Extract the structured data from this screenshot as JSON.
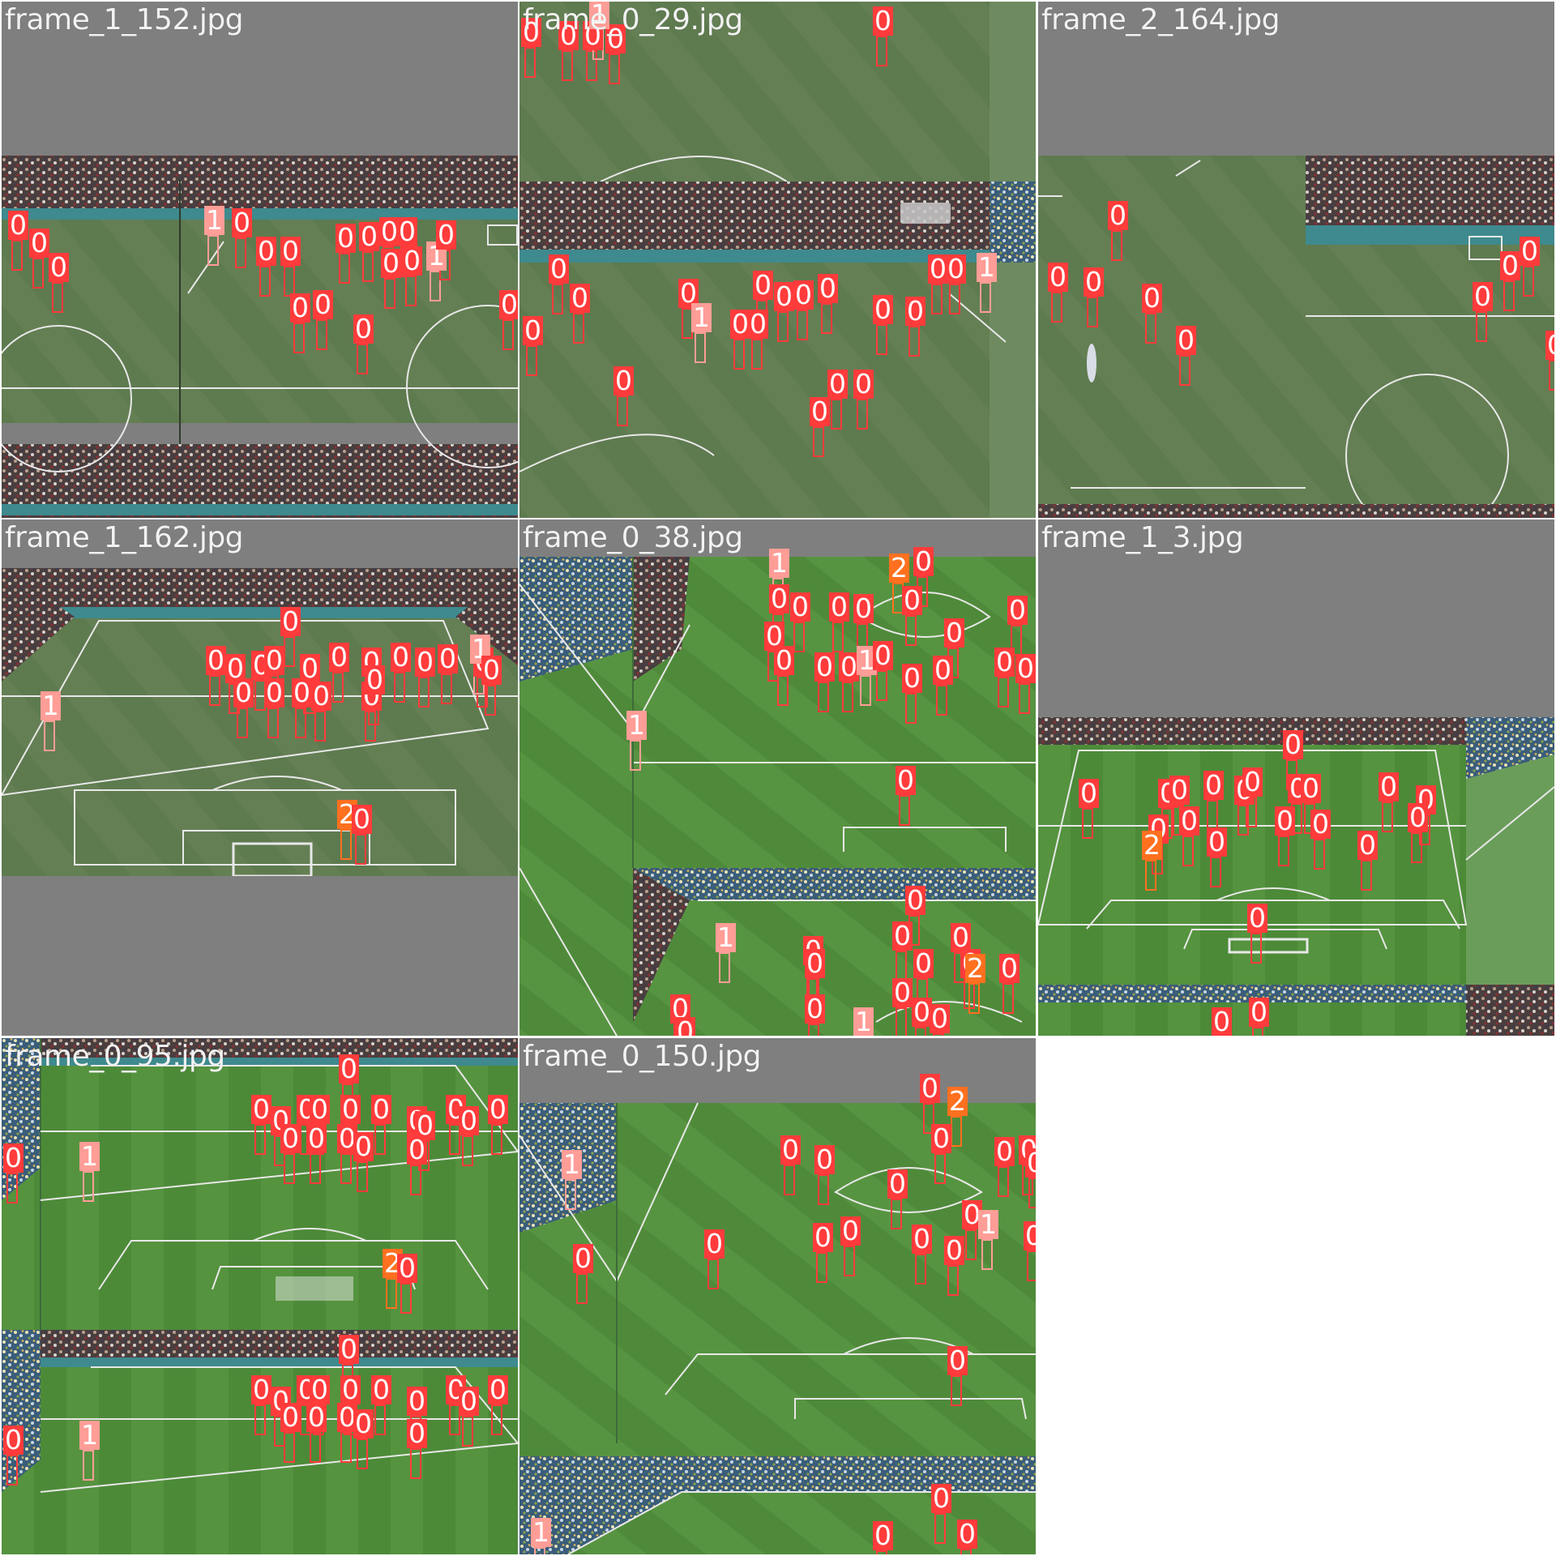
{
  "colors": {
    "0": "#ff3b3b",
    "1": "#ff9d97",
    "2": "#ff701f"
  },
  "tiles": [
    {
      "filename": "frame_1_152.jpg",
      "scene": "crowd-top",
      "dets": [
        [
          "0",
          12,
          268
        ],
        [
          "0",
          38,
          290
        ],
        [
          "0",
          62,
          320
        ],
        [
          "1",
          254,
          262
        ],
        [
          "0",
          288,
          265
        ],
        [
          "0",
          318,
          300
        ],
        [
          "0",
          348,
          300
        ],
        [
          "0",
          416,
          284
        ],
        [
          "0",
          445,
          282
        ],
        [
          "0",
          470,
          276
        ],
        [
          "0",
          492,
          276
        ],
        [
          "0",
          472,
          315
        ],
        [
          "0",
          498,
          312
        ],
        [
          "1",
          528,
          306
        ],
        [
          "0",
          540,
          280
        ],
        [
          "0",
          360,
          370
        ],
        [
          "0",
          388,
          366
        ],
        [
          "0",
          438,
          396
        ],
        [
          "0",
          618,
          366
        ]
      ]
    },
    {
      "filename": "frame_0_29.jpg",
      "scene": "crowd-mid",
      "dets": [
        [
          "0",
          6,
          30
        ],
        [
          "0",
          52,
          34
        ],
        [
          "0",
          82,
          34
        ],
        [
          "0",
          110,
          38
        ],
        [
          "1",
          90,
          8
        ],
        [
          "0",
          440,
          16
        ],
        [
          "0",
          40,
          322
        ],
        [
          "0",
          66,
          358
        ],
        [
          "0",
          8,
          398
        ],
        [
          "0",
          200,
          352
        ],
        [
          "1",
          216,
          382
        ],
        [
          "0",
          264,
          390
        ],
        [
          "0",
          286,
          390
        ],
        [
          "0",
          292,
          342
        ],
        [
          "0",
          318,
          356
        ],
        [
          "0",
          342,
          354
        ],
        [
          "0",
          372,
          346
        ],
        [
          "0",
          440,
          372
        ],
        [
          "0",
          480,
          374
        ],
        [
          "0",
          508,
          322
        ],
        [
          "0",
          530,
          322
        ],
        [
          "1",
          568,
          320
        ],
        [
          "0",
          120,
          460
        ],
        [
          "0",
          362,
          498
        ],
        [
          "0",
          384,
          464
        ],
        [
          "0",
          416,
          464
        ]
      ]
    },
    {
      "filename": "frame_2_164.jpg",
      "scene": "pitch-split",
      "dets": [
        [
          "0",
          90,
          256
        ],
        [
          "0",
          16,
          332
        ],
        [
          "0",
          60,
          338
        ],
        [
          "0",
          132,
          358
        ],
        [
          "0",
          174,
          410
        ],
        [
          "0",
          540,
          356
        ],
        [
          "0",
          574,
          318
        ],
        [
          "0",
          598,
          300
        ],
        [
          "0",
          630,
          416
        ]
      ]
    },
    {
      "filename": "frame_1_162.jpg",
      "scene": "wide-stadium",
      "dets": [
        [
          "0",
          348,
          118
        ],
        [
          "0",
          256,
          166
        ],
        [
          "0",
          280,
          176
        ],
        [
          "0",
          312,
          172
        ],
        [
          "0",
          328,
          166
        ],
        [
          "0",
          372,
          176
        ],
        [
          "0",
          408,
          162
        ],
        [
          "0",
          448,
          168
        ],
        [
          "0",
          484,
          162
        ],
        [
          "0",
          514,
          168
        ],
        [
          "0",
          542,
          164
        ],
        [
          "0",
          586,
          168
        ],
        [
          "1",
          582,
          152
        ],
        [
          "0",
          596,
          178
        ],
        [
          "0",
          290,
          206
        ],
        [
          "0",
          328,
          206
        ],
        [
          "0",
          362,
          206
        ],
        [
          "0",
          386,
          210
        ],
        [
          "0",
          448,
          210
        ],
        [
          "0",
          452,
          190
        ],
        [
          "1",
          52,
          222
        ],
        [
          "2",
          418,
          356
        ],
        [
          "0",
          436,
          362
        ]
      ]
    },
    {
      "filename": "frame_0_38.jpg",
      "scene": "diag-corner",
      "dets": [
        [
          "1",
          312,
          46
        ],
        [
          "2",
          460,
          52
        ],
        [
          "0",
          490,
          44
        ],
        [
          "0",
          312,
          90
        ],
        [
          "0",
          338,
          100
        ],
        [
          "0",
          386,
          100
        ],
        [
          "0",
          416,
          102
        ],
        [
          "0",
          476,
          92
        ],
        [
          "0",
          306,
          136
        ],
        [
          "0",
          318,
          166
        ],
        [
          "0",
          368,
          174
        ],
        [
          "0",
          398,
          174
        ],
        [
          "1",
          420,
          166
        ],
        [
          "0",
          440,
          160
        ],
        [
          "0",
          476,
          188
        ],
        [
          "0",
          528,
          132
        ],
        [
          "0",
          514,
          178
        ],
        [
          "0",
          606,
          104
        ],
        [
          "0",
          590,
          168
        ],
        [
          "0",
          616,
          176
        ],
        [
          "1",
          136,
          246
        ],
        [
          "0",
          468,
          314
        ],
        [
          "0",
          480,
          462
        ],
        [
          "1",
          246,
          508
        ],
        [
          "0",
          354,
          524
        ],
        [
          "0",
          356,
          540
        ],
        [
          "0",
          464,
          506
        ],
        [
          "0",
          536,
          508
        ],
        [
          "0",
          490,
          540
        ],
        [
          "0",
          548,
          540
        ],
        [
          "2",
          554,
          546
        ],
        [
          "0",
          596,
          546
        ],
        [
          "0",
          464,
          576
        ],
        [
          "0",
          356,
          596
        ],
        [
          "0",
          488,
          600
        ],
        [
          "0",
          510,
          608
        ],
        [
          "1",
          416,
          612
        ],
        [
          "0",
          190,
          596
        ],
        [
          "0",
          196,
          624
        ]
      ]
    },
    {
      "filename": "frame_1_3.jpg",
      "scene": "wide-bottom",
      "dets": [
        [
          "0",
          306,
          270
        ],
        [
          "0",
          54,
          330
        ],
        [
          "0",
          152,
          330
        ],
        [
          "0",
          166,
          326
        ],
        [
          "0",
          208,
          320
        ],
        [
          "0",
          246,
          326
        ],
        [
          "0",
          256,
          316
        ],
        [
          "0",
          312,
          324
        ],
        [
          "0",
          328,
          324
        ],
        [
          "0",
          424,
          322
        ],
        [
          "0",
          470,
          338
        ],
        [
          "0",
          460,
          360
        ],
        [
          "0",
          140,
          374
        ],
        [
          "2",
          132,
          394
        ],
        [
          "0",
          178,
          364
        ],
        [
          "0",
          212,
          390
        ],
        [
          "0",
          296,
          364
        ],
        [
          "0",
          340,
          368
        ],
        [
          "0",
          398,
          394
        ],
        [
          "0",
          262,
          484
        ],
        [
          "0",
          218,
          612
        ],
        [
          "0",
          264,
          600
        ]
      ]
    },
    {
      "filename": "frame_0_95.jpg",
      "scene": "wide-dup",
      "dets": [
        [
          "0",
          420,
          30
        ],
        [
          "0",
          312,
          80
        ],
        [
          "0",
          336,
          94
        ],
        [
          "0",
          368,
          80
        ],
        [
          "0",
          384,
          80
        ],
        [
          "0",
          422,
          80
        ],
        [
          "0",
          460,
          80
        ],
        [
          "0",
          504,
          94
        ],
        [
          "0",
          514,
          100
        ],
        [
          "0",
          552,
          80
        ],
        [
          "0",
          568,
          94
        ],
        [
          "0",
          604,
          80
        ],
        [
          "0",
          348,
          116
        ],
        [
          "0",
          380,
          116
        ],
        [
          "0",
          418,
          116
        ],
        [
          "0",
          438,
          126
        ],
        [
          "0",
          504,
          130
        ],
        [
          "1",
          100,
          138
        ],
        [
          "0",
          6,
          140
        ],
        [
          "2",
          474,
          270
        ],
        [
          "0",
          492,
          276
        ],
        [
          "0",
          420,
          376
        ],
        [
          "0",
          312,
          426
        ],
        [
          "0",
          336,
          440
        ],
        [
          "0",
          368,
          426
        ],
        [
          "0",
          384,
          426
        ],
        [
          "0",
          422,
          426
        ],
        [
          "0",
          460,
          426
        ],
        [
          "0",
          504,
          440
        ],
        [
          "0",
          552,
          426
        ],
        [
          "0",
          568,
          440
        ],
        [
          "0",
          604,
          426
        ],
        [
          "0",
          348,
          460
        ],
        [
          "0",
          380,
          460
        ],
        [
          "0",
          418,
          460
        ],
        [
          "0",
          438,
          468
        ],
        [
          "0",
          504,
          480
        ],
        [
          "1",
          100,
          482
        ],
        [
          "0",
          6,
          488
        ]
      ]
    },
    {
      "filename": "frame_0_150.jpg",
      "scene": "diag-frame",
      "dets": [
        [
          "0",
          498,
          54
        ],
        [
          "2",
          532,
          70
        ],
        [
          "0",
          326,
          130
        ],
        [
          "0",
          368,
          142
        ],
        [
          "0",
          512,
          116
        ],
        [
          "0",
          590,
          132
        ],
        [
          "0",
          620,
          130
        ],
        [
          "0",
          628,
          146
        ],
        [
          "0",
          458,
          172
        ],
        [
          "1",
          56,
          148
        ],
        [
          "0",
          550,
          210
        ],
        [
          "1",
          570,
          222
        ],
        [
          "0",
          626,
          236
        ],
        [
          "0",
          232,
          246
        ],
        [
          "0",
          366,
          238
        ],
        [
          "0",
          400,
          230
        ],
        [
          "0",
          488,
          240
        ],
        [
          "0",
          528,
          254
        ],
        [
          "0",
          70,
          264
        ],
        [
          "0",
          532,
          390
        ],
        [
          "0",
          512,
          560
        ],
        [
          "0",
          440,
          606
        ],
        [
          "0",
          544,
          604
        ],
        [
          "1",
          18,
          602
        ]
      ]
    }
  ]
}
